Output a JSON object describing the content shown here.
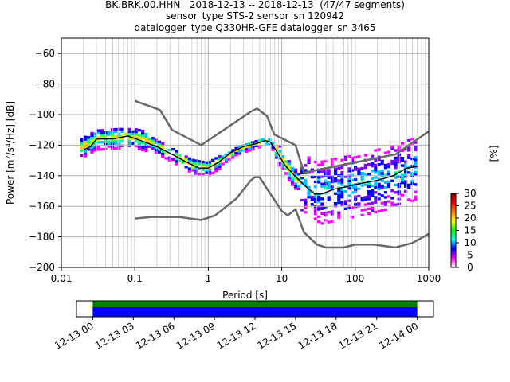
{
  "title_lines": [
    "BK.BRK.00.HHN   2018-12-13 -- 2018-12-13  (47/47 segments)",
    "sensor_type STS-2 sensor_sn 120942",
    "datalogger_type Q330HR-GFE datalogger_sn 3465"
  ],
  "chart_data": [
    {
      "type": "heatmap",
      "subtype": "probabilistic power spectral density",
      "xlabel": "Period [s]",
      "ylabel": "Power [m²/s⁴/Hz] [dB]",
      "xscale": "log",
      "xlim": [
        0.01,
        1000
      ],
      "ylim": [
        -200,
        -50
      ],
      "xticks": [
        "0.01",
        "0.1",
        "1",
        "10",
        "100",
        "1000"
      ],
      "yticks": [
        "−60",
        "−80",
        "−100",
        "−120",
        "−140",
        "−160",
        "−180",
        "−200"
      ],
      "grid": true,
      "colorbar": {
        "label": "[%]",
        "ticks": [
          "0",
          "5",
          "10",
          "15",
          "20",
          "25",
          "30"
        ],
        "range": [
          0,
          30
        ],
        "colors": [
          "#ffffff",
          "#ff00ff",
          "#0000ff",
          "#00ffff",
          "#00ff00",
          "#ffff00",
          "#ff8000",
          "#ff0000",
          "#7f0000"
        ]
      },
      "noise_models": [
        {
          "name": "",
          "color": "#696969",
          "points": [
            [
              0.1,
              -91
            ],
            [
              0.22,
              -97
            ],
            [
              0.32,
              -110
            ],
            [
              0.8,
              -120
            ],
            [
              3.8,
              -98
            ],
            [
              4.6,
              -96
            ],
            [
              6.3,
              -101
            ],
            [
              7.9,
              -113
            ],
            [
              15.4,
              -120
            ],
            [
              20,
              -138
            ],
            [
              354.8,
              -126
            ],
            [
              1000,
              -111
            ]
          ]
        },
        {
          "name": "",
          "color": "#696969",
          "points": [
            [
              0.1,
              -168
            ],
            [
              0.17,
              -167
            ],
            [
              0.4,
              -167
            ],
            [
              0.8,
              -169
            ],
            [
              1.24,
              -166
            ],
            [
              2.4,
              -155
            ],
            [
              3.8,
              -143
            ],
            [
              4.3,
              -141
            ],
            [
              5.0,
              -141
            ],
            [
              6.0,
              -147
            ],
            [
              10,
              -163
            ],
            [
              12,
              -166
            ],
            [
              15.4,
              -162
            ],
            [
              20,
              -177
            ],
            [
              30,
              -185
            ],
            [
              40,
              -187
            ],
            [
              70,
              -187
            ],
            [
              100,
              -185
            ],
            [
              180,
              -185
            ],
            [
              350,
              -187
            ],
            [
              600,
              -184
            ],
            [
              1000,
              -178
            ]
          ]
        }
      ],
      "median_curve": {
        "color": "#000000",
        "points": [
          [
            0.02,
            -123
          ],
          [
            0.025,
            -121
          ],
          [
            0.03,
            -116
          ],
          [
            0.05,
            -116
          ],
          [
            0.08,
            -114
          ],
          [
            0.12,
            -117
          ],
          [
            0.2,
            -121
          ],
          [
            0.35,
            -127
          ],
          [
            0.5,
            -131
          ],
          [
            0.75,
            -135
          ],
          [
            1.0,
            -135
          ],
          [
            1.4,
            -131
          ],
          [
            2.0,
            -125
          ],
          [
            3.0,
            -121
          ],
          [
            4.5,
            -119
          ],
          [
            6.0,
            -117
          ],
          [
            7.0,
            -118
          ],
          [
            8.5,
            -124
          ],
          [
            11,
            -133
          ],
          [
            15,
            -140
          ],
          [
            20,
            -146
          ],
          [
            28,
            -152
          ],
          [
            35,
            -152
          ],
          [
            50,
            -149
          ],
          [
            80,
            -147
          ],
          [
            120,
            -145
          ],
          [
            200,
            -143
          ],
          [
            330,
            -140
          ],
          [
            500,
            -135
          ],
          [
            700,
            -134
          ]
        ]
      },
      "density_bands": [
        {
          "from": 0.018,
          "to": 0.15,
          "center": [
            [
              0.018,
              -122
            ],
            [
              0.03,
              -116
            ],
            [
              0.06,
              -115
            ],
            [
              0.1,
              -115
            ],
            [
              0.15,
              -117
            ]
          ],
          "spread_db": 14
        },
        {
          "from": 0.15,
          "to": 1.5,
          "center": [
            [
              0.15,
              -117
            ],
            [
              0.3,
              -125
            ],
            [
              0.6,
              -133
            ],
            [
              1.0,
              -135
            ],
            [
              1.5,
              -130
            ]
          ],
          "spread_db": 10
        },
        {
          "from": 1.5,
          "to": 8,
          "center": [
            [
              1.5,
              -130
            ],
            [
              2.5,
              -123
            ],
            [
              4.5,
              -119
            ],
            [
              6.5,
              -117
            ],
            [
              8,
              -121
            ]
          ],
          "spread_db": 6
        },
        {
          "from": 8,
          "to": 18,
          "center": [
            [
              8,
              -121
            ],
            [
              11,
              -132
            ],
            [
              15,
              -141
            ],
            [
              18,
              -144
            ]
          ],
          "spread_db": 14
        },
        {
          "from": 18,
          "to": 700,
          "center": [
            [
              18,
              -144
            ],
            [
              30,
              -151
            ],
            [
              60,
              -148
            ],
            [
              150,
              -144
            ],
            [
              400,
              -139
            ],
            [
              700,
              -134
            ]
          ],
          "spread_db": 42
        }
      ]
    },
    {
      "type": "bar",
      "subtype": "data-availability timeline",
      "tick_labels": [
        "12-13 00",
        "12-13 03",
        "12-13 06",
        "12-13 09",
        "12-13 12",
        "12-13 15",
        "12-13 18",
        "12-13 21",
        "12-14 00"
      ],
      "tick_hours": [
        0,
        3,
        6,
        9,
        12,
        15,
        18,
        21,
        24
      ],
      "xlim_hours": [
        -1.2,
        25.2
      ],
      "segments": [
        {
          "start_hour": 0,
          "end_hour": 24,
          "color": "#008000",
          "row": "top"
        },
        {
          "start_hour": 0,
          "end_hour": 24,
          "color": "#0000ff",
          "row": "bottom"
        }
      ]
    }
  ]
}
